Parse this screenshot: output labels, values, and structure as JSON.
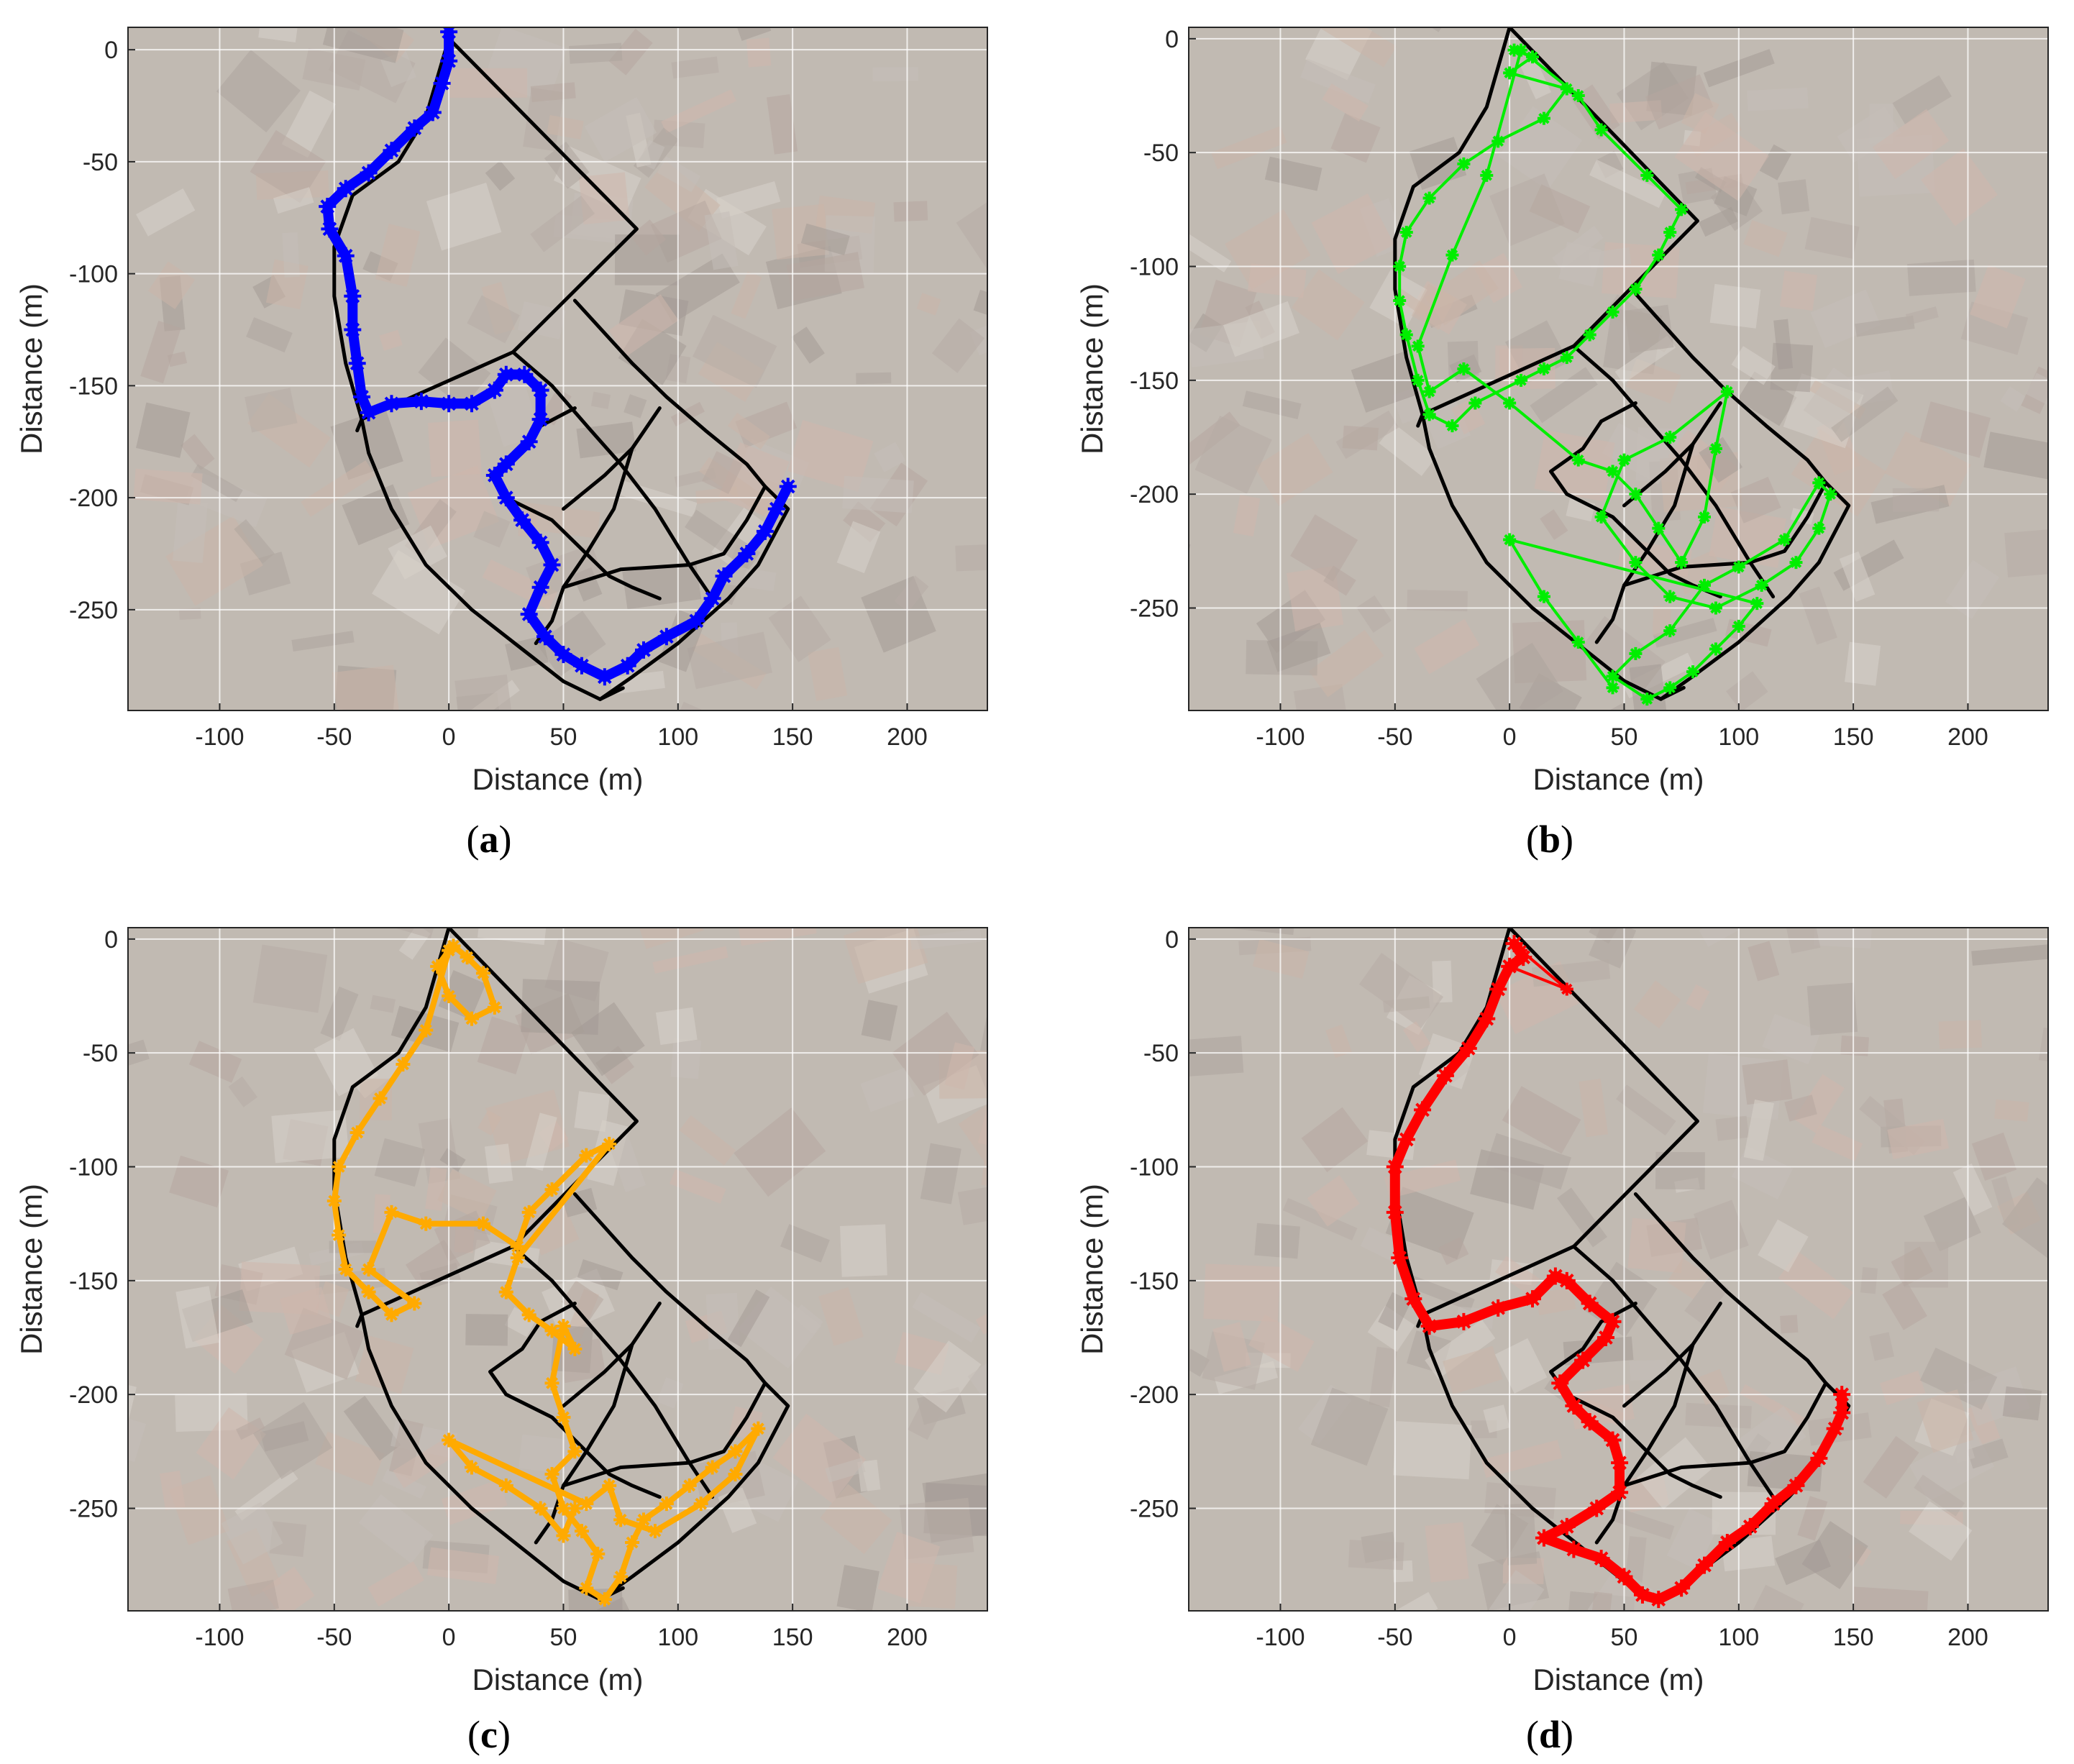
{
  "colors": {
    "map_background": "#b4aba2",
    "street_network": "#000000",
    "grid": "#ffffff",
    "axis": "#262626"
  },
  "chart_data": [
    {
      "id": "a",
      "caption": "a",
      "type": "line",
      "xlabel": "Distance (m)",
      "ylabel": "Distance (m)",
      "xlim": [
        -140,
        235
      ],
      "ylim": [
        -295,
        10
      ],
      "xticks": [
        -100,
        -50,
        0,
        50,
        100,
        150,
        200
      ],
      "yticks": [
        0,
        -50,
        -100,
        -150,
        -200,
        -250
      ],
      "grid": true,
      "background": "aerial map",
      "series": [
        {
          "color": "#0000ff",
          "marker": "star",
          "style": "thick",
          "points": [
            [
              0,
              8
            ],
            [
              0,
              -5
            ],
            [
              -3,
              -15
            ],
            [
              -7,
              -28
            ],
            [
              -15,
              -35
            ],
            [
              -25,
              -45
            ],
            [
              -35,
              -55
            ],
            [
              -45,
              -62
            ],
            [
              -53,
              -70
            ],
            [
              -52,
              -80
            ],
            [
              -45,
              -92
            ],
            [
              -42,
              -110
            ],
            [
              -42,
              -125
            ],
            [
              -40,
              -140
            ],
            [
              -38,
              -155
            ],
            [
              -35,
              -162
            ],
            [
              -25,
              -158
            ],
            [
              -12,
              -157
            ],
            [
              0,
              -158
            ],
            [
              10,
              -158
            ],
            [
              20,
              -152
            ],
            [
              25,
              -145
            ],
            [
              33,
              -145
            ],
            [
              40,
              -152
            ],
            [
              40,
              -165
            ],
            [
              35,
              -175
            ],
            [
              25,
              -185
            ],
            [
              20,
              -190
            ],
            [
              25,
              -200
            ],
            [
              32,
              -210
            ],
            [
              40,
              -220
            ],
            [
              45,
              -230
            ],
            [
              40,
              -240
            ],
            [
              35,
              -252
            ],
            [
              42,
              -262
            ],
            [
              50,
              -270
            ],
            [
              58,
              -275
            ],
            [
              68,
              -280
            ],
            [
              78,
              -275
            ],
            [
              85,
              -268
            ],
            [
              95,
              -262
            ],
            [
              108,
              -255
            ],
            [
              115,
              -245
            ],
            [
              120,
              -235
            ],
            [
              130,
              -225
            ],
            [
              138,
              -215
            ],
            [
              143,
              -205
            ],
            [
              148,
              -195
            ]
          ]
        }
      ]
    },
    {
      "id": "b",
      "caption": "b",
      "type": "line",
      "xlabel": "Distance (m)",
      "ylabel": "Distance (m)",
      "xlim": [
        -140,
        235
      ],
      "ylim": [
        -295,
        5
      ],
      "xticks": [
        -100,
        -50,
        0,
        50,
        100,
        150,
        200
      ],
      "yticks": [
        0,
        -50,
        -100,
        -150,
        -200,
        -250
      ],
      "grid": true,
      "background": "aerial map",
      "series": [
        {
          "color": "#00ee00",
          "marker": "star",
          "style": "thin",
          "points": [
            [
              2,
              -5
            ],
            [
              10,
              -8
            ],
            [
              0,
              -15
            ],
            [
              25,
              -22
            ],
            [
              15,
              -35
            ],
            [
              -5,
              -45
            ],
            [
              -20,
              -55
            ],
            [
              -35,
              -70
            ],
            [
              -45,
              -85
            ],
            [
              -48,
              -100
            ],
            [
              -48,
              -115
            ],
            [
              -45,
              -130
            ],
            [
              -40,
              -150
            ],
            [
              -35,
              -165
            ],
            [
              -25,
              -170
            ],
            [
              -15,
              -160
            ],
            [
              5,
              -150
            ],
            [
              15,
              -145
            ],
            [
              25,
              -140
            ],
            [
              35,
              -130
            ],
            [
              45,
              -120
            ],
            [
              55,
              -110
            ],
            [
              65,
              -95
            ],
            [
              70,
              -85
            ],
            [
              75,
              -75
            ],
            [
              60,
              -60
            ],
            [
              40,
              -40
            ],
            [
              30,
              -25
            ],
            [
              5,
              -5
            ],
            [
              -10,
              -60
            ],
            [
              -25,
              -95
            ],
            [
              -40,
              -135
            ],
            [
              -35,
              -155
            ],
            [
              -20,
              -145
            ],
            [
              0,
              -160
            ],
            [
              30,
              -185
            ],
            [
              45,
              -190
            ],
            [
              55,
              -200
            ],
            [
              65,
              -215
            ],
            [
              75,
              -230
            ],
            [
              85,
              -210
            ],
            [
              90,
              -180
            ],
            [
              95,
              -155
            ],
            [
              70,
              -175
            ],
            [
              50,
              -185
            ],
            [
              40,
              -210
            ],
            [
              55,
              -230
            ],
            [
              70,
              -245
            ],
            [
              90,
              -250
            ],
            [
              110,
              -240
            ],
            [
              125,
              -230
            ],
            [
              135,
              -215
            ],
            [
              140,
              -200
            ],
            [
              135,
              -195
            ],
            [
              120,
              -220
            ],
            [
              100,
              -232
            ],
            [
              85,
              -240
            ],
            [
              70,
              -260
            ],
            [
              55,
              -270
            ],
            [
              45,
              -280
            ],
            [
              60,
              -290
            ],
            [
              70,
              -285
            ],
            [
              80,
              -278
            ],
            [
              90,
              -268
            ],
            [
              100,
              -258
            ],
            [
              108,
              -248
            ],
            [
              0,
              -220
            ],
            [
              15,
              -245
            ],
            [
              30,
              -265
            ],
            [
              45,
              -285
            ]
          ]
        }
      ]
    },
    {
      "id": "c",
      "caption": "c",
      "type": "line",
      "xlabel": "Distance (m)",
      "ylabel": "Distance (m)",
      "xlim": [
        -140,
        235
      ],
      "ylim": [
        -295,
        5
      ],
      "xticks": [
        -100,
        -50,
        0,
        50,
        100,
        150,
        200
      ],
      "yticks": [
        0,
        -50,
        -100,
        -150,
        -200,
        -250
      ],
      "grid": true,
      "background": "aerial map",
      "series": [
        {
          "color": "#ffaa00",
          "marker": "star",
          "style": "medium",
          "points": [
            [
              2,
              -3
            ],
            [
              8,
              -8
            ],
            [
              15,
              -15
            ],
            [
              20,
              -30
            ],
            [
              10,
              -35
            ],
            [
              0,
              -25
            ],
            [
              -5,
              -12
            ],
            [
              0,
              -5
            ],
            [
              -10,
              -40
            ],
            [
              -20,
              -55
            ],
            [
              -30,
              -70
            ],
            [
              -40,
              -85
            ],
            [
              -48,
              -100
            ],
            [
              -50,
              -115
            ],
            [
              -48,
              -130
            ],
            [
              -45,
              -145
            ],
            [
              -35,
              -155
            ],
            [
              -25,
              -165
            ],
            [
              -15,
              -160
            ],
            [
              -35,
              -145
            ],
            [
              -25,
              -120
            ],
            [
              -10,
              -125
            ],
            [
              15,
              -125
            ],
            [
              30,
              -135
            ],
            [
              35,
              -120
            ],
            [
              45,
              -110
            ],
            [
              60,
              -95
            ],
            [
              70,
              -90
            ],
            [
              30,
              -140
            ],
            [
              25,
              -155
            ],
            [
              35,
              -165
            ],
            [
              45,
              -172
            ],
            [
              55,
              -180
            ],
            [
              50,
              -170
            ],
            [
              45,
              -195
            ],
            [
              50,
              -210
            ],
            [
              55,
              -225
            ],
            [
              45,
              -235
            ],
            [
              50,
              -250
            ],
            [
              58,
              -260
            ],
            [
              65,
              -270
            ],
            [
              60,
              -285
            ],
            [
              68,
              -290
            ],
            [
              75,
              -280
            ],
            [
              80,
              -265
            ],
            [
              85,
              -255
            ],
            [
              95,
              -248
            ],
            [
              105,
              -240
            ],
            [
              115,
              -232
            ],
            [
              125,
              -225
            ],
            [
              135,
              -215
            ],
            [
              125,
              -235
            ],
            [
              110,
              -248
            ],
            [
              90,
              -260
            ],
            [
              75,
              -255
            ],
            [
              70,
              -240
            ],
            [
              60,
              -248
            ],
            [
              0,
              -220
            ],
            [
              10,
              -232
            ],
            [
              25,
              -240
            ],
            [
              40,
              -250
            ],
            [
              50,
              -262
            ],
            [
              55,
              -250
            ]
          ]
        }
      ]
    },
    {
      "id": "d",
      "caption": "d",
      "type": "line",
      "xlabel": "Distance (m)",
      "ylabel": "Distance (m)",
      "xlim": [
        -140,
        235
      ],
      "ylim": [
        -295,
        5
      ],
      "xticks": [
        -100,
        -50,
        0,
        50,
        100,
        150,
        200
      ],
      "yticks": [
        0,
        -50,
        -100,
        -150,
        -200,
        -250
      ],
      "grid": true,
      "background": "aerial map",
      "series": [
        {
          "color": "#ff0000",
          "marker": "star",
          "style": "thick",
          "points": [
            [
              2,
              -2
            ],
            [
              6,
              -8
            ],
            [
              0,
              -12
            ],
            [
              -5,
              -22
            ],
            [
              -10,
              -35
            ],
            [
              -18,
              -48
            ],
            [
              -28,
              -60
            ],
            [
              -38,
              -75
            ],
            [
              -45,
              -88
            ],
            [
              -50,
              -100
            ],
            [
              -50,
              -120
            ],
            [
              -48,
              -140
            ],
            [
              -42,
              -158
            ],
            [
              -35,
              -170
            ],
            [
              -20,
              -168
            ],
            [
              -5,
              -162
            ],
            [
              10,
              -158
            ],
            [
              20,
              -148
            ],
            [
              25,
              -150
            ],
            [
              35,
              -160
            ],
            [
              45,
              -168
            ],
            [
              42,
              -175
            ],
            [
              32,
              -185
            ],
            [
              22,
              -195
            ],
            [
              28,
              -205
            ],
            [
              35,
              -212
            ],
            [
              45,
              -220
            ],
            [
              48,
              -230
            ],
            [
              48,
              -243
            ],
            [
              38,
              -250
            ],
            [
              25,
              -258
            ],
            [
              15,
              -263
            ],
            [
              28,
              -268
            ],
            [
              40,
              -272
            ],
            [
              50,
              -280
            ],
            [
              58,
              -288
            ],
            [
              65,
              -290
            ],
            [
              75,
              -285
            ],
            [
              85,
              -275
            ],
            [
              95,
              -265
            ],
            [
              105,
              -258
            ],
            [
              115,
              -248
            ],
            [
              125,
              -240
            ],
            [
              135,
              -228
            ],
            [
              142,
              -215
            ],
            [
              145,
              -208
            ],
            [
              145,
              -200
            ]
          ]
        },
        {
          "color": "#ff0000",
          "marker": "star",
          "style": "thin",
          "points": [
            [
              0,
              -12
            ],
            [
              25,
              -22
            ],
            [
              5,
              -5
            ],
            [
              -5,
              -22
            ]
          ]
        }
      ]
    }
  ]
}
